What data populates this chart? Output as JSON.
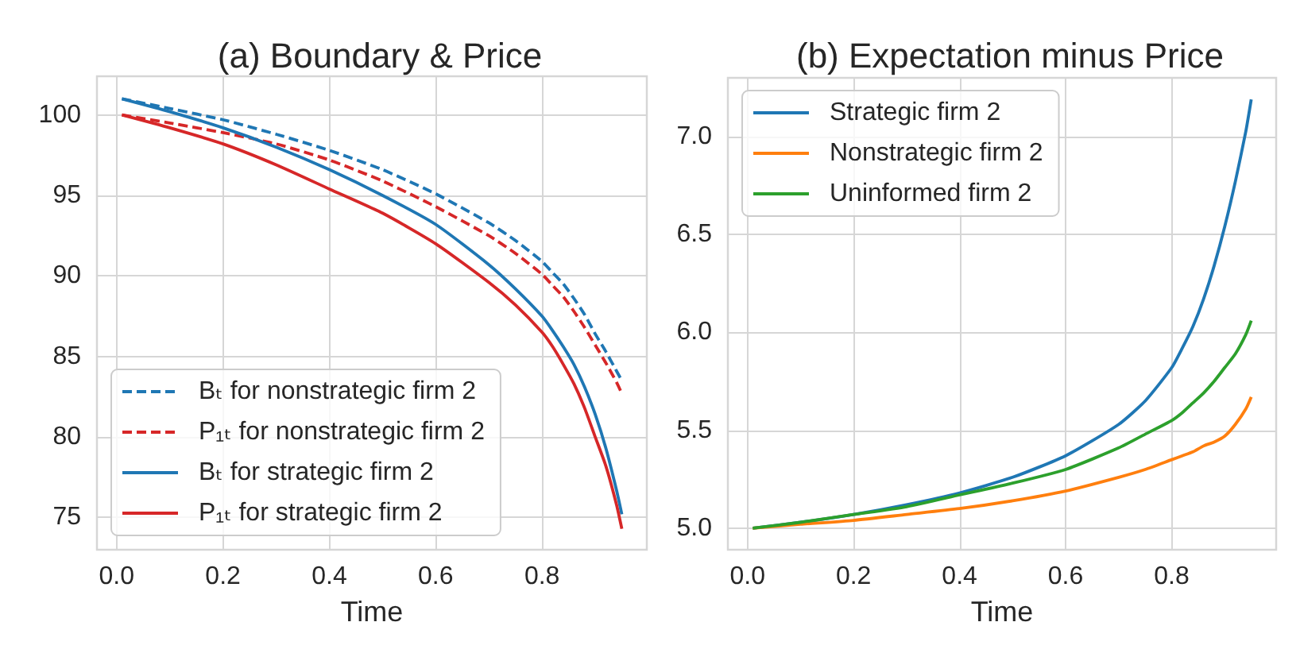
{
  "chart_data": [
    {
      "type": "line",
      "title": "(a) Boundary & Price",
      "xlabel": "Time",
      "x": [
        0.01,
        0.1,
        0.2,
        0.3,
        0.4,
        0.5,
        0.6,
        0.7,
        0.75,
        0.8,
        0.82,
        0.84,
        0.86,
        0.88,
        0.9,
        0.92,
        0.94,
        0.95
      ],
      "xlim": [
        -0.037,
        0.997
      ],
      "xticks": [
        {
          "value": 0,
          "label": "0.0"
        },
        0.2,
        0.4,
        0.6,
        0.8
      ],
      "ylim": [
        73,
        102.4
      ],
      "yticks": [
        75,
        80,
        85,
        90,
        95,
        100
      ],
      "grid": true,
      "legend": "bottom left",
      "series": [
        {
          "name": "Bₜ for nonstrategic firm 2",
          "color": "#1f77b4",
          "line_style": "dashed",
          "values": [
            101.0,
            100.4,
            99.7,
            98.8,
            97.8,
            96.6,
            95.1,
            93.3,
            92.2,
            90.9,
            90.2,
            89.5,
            88.6,
            87.6,
            86.4,
            85.3,
            84.1,
            83.5
          ]
        },
        {
          "name": "P₁ₜ for nonstrategic firm 2",
          "color": "#d62728",
          "line_style": "dashed",
          "values": [
            100.0,
            99.5,
            98.9,
            98.2,
            97.2,
            95.9,
            94.3,
            92.5,
            91.4,
            90.1,
            89.4,
            88.7,
            87.8,
            86.8,
            85.7,
            84.6,
            83.4,
            82.7
          ]
        },
        {
          "name": "Bₜ for strategic firm 2",
          "color": "#1f77b4",
          "line_style": "solid",
          "values": [
            101.0,
            100.2,
            99.2,
            98.0,
            96.6,
            95.0,
            93.2,
            90.7,
            89.2,
            87.5,
            86.6,
            85.6,
            84.5,
            83.1,
            81.4,
            79.3,
            76.7,
            75.2
          ]
        },
        {
          "name": "P₁ₜ for strategic firm 2",
          "color": "#d62728",
          "line_style": "solid",
          "values": [
            100.0,
            99.2,
            98.2,
            96.9,
            95.4,
            93.9,
            92.0,
            89.6,
            88.2,
            86.5,
            85.6,
            84.5,
            83.3,
            81.8,
            80.0,
            78.2,
            75.8,
            74.3
          ]
        }
      ]
    },
    {
      "type": "line",
      "title": "(b) Expectation minus Price",
      "xlabel": "Time",
      "x": [
        0.01,
        0.1,
        0.2,
        0.3,
        0.4,
        0.5,
        0.6,
        0.7,
        0.75,
        0.8,
        0.82,
        0.84,
        0.86,
        0.88,
        0.9,
        0.92,
        0.94,
        0.95
      ],
      "xlim": [
        -0.037,
        0.997
      ],
      "xticks": [
        {
          "value": 0,
          "label": "0.0"
        },
        0.2,
        0.4,
        0.6,
        0.8
      ],
      "ylim": [
        4.89,
        7.3
      ],
      "yticks": [
        {
          "value": 5,
          "label": "5.0"
        },
        5.5,
        {
          "value": 6,
          "label": "6.0"
        },
        6.5,
        {
          "value": 7,
          "label": "7.0"
        }
      ],
      "grid": true,
      "legend": "top left",
      "series": [
        {
          "name": "Strategic firm 2",
          "color": "#1f77b4",
          "line_style": "solid",
          "values": [
            5.0,
            5.03,
            5.07,
            5.12,
            5.18,
            5.26,
            5.37,
            5.53,
            5.65,
            5.82,
            5.92,
            6.03,
            6.17,
            6.34,
            6.54,
            6.77,
            7.03,
            7.19
          ]
        },
        {
          "name": "Nonstrategic firm 2",
          "color": "#ff7f0e",
          "line_style": "solid",
          "values": [
            5.0,
            5.02,
            5.04,
            5.07,
            5.1,
            5.14,
            5.19,
            5.26,
            5.3,
            5.35,
            5.37,
            5.39,
            5.42,
            5.44,
            5.47,
            5.53,
            5.61,
            5.67
          ]
        },
        {
          "name": "Uninformed firm 2",
          "color": "#2ca02c",
          "line_style": "solid",
          "values": [
            5.0,
            5.03,
            5.07,
            5.11,
            5.17,
            5.23,
            5.3,
            5.41,
            5.48,
            5.55,
            5.59,
            5.64,
            5.69,
            5.75,
            5.82,
            5.89,
            5.99,
            6.06
          ]
        }
      ]
    }
  ]
}
